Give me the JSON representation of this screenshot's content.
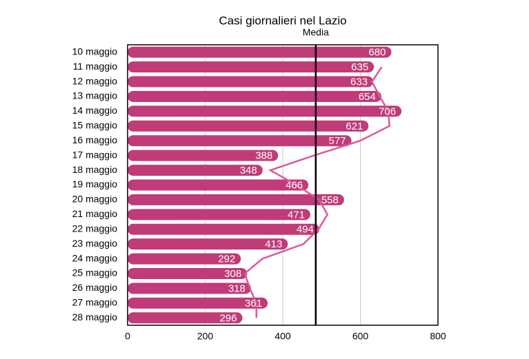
{
  "chart_data": {
    "type": "bar",
    "title": "Casi giornalieri nel Lazio",
    "categories": [
      "10 maggio",
      "11 maggio",
      "12 maggio",
      "13 maggio",
      "14 maggio",
      "15 maggio",
      "16 maggio",
      "17 maggio",
      "18 maggio",
      "19 maggio",
      "20 maggio",
      "21 maggio",
      "22 maggio",
      "23 maggio",
      "24 maggio",
      "25 maggio",
      "26 maggio",
      "27 maggio",
      "28 maggio"
    ],
    "values": [
      680,
      635,
      633,
      654,
      706,
      621,
      577,
      388,
      348,
      466,
      558,
      471,
      494,
      413,
      292,
      308,
      318,
      361,
      296
    ],
    "color": "#c03b78",
    "trend": {
      "color": "#e0559a",
      "values": [
        null,
        655,
        630,
        650,
        672,
        675,
        600,
        480,
        368,
        435,
        494,
        515,
        492,
        453,
        347,
        302,
        315,
        332,
        332
      ]
    },
    "mean_line": {
      "label": "Media",
      "value": 485
    },
    "xlim": [
      0,
      800
    ],
    "xticks": [
      0,
      200,
      400,
      600,
      800
    ],
    "grid": true
  }
}
